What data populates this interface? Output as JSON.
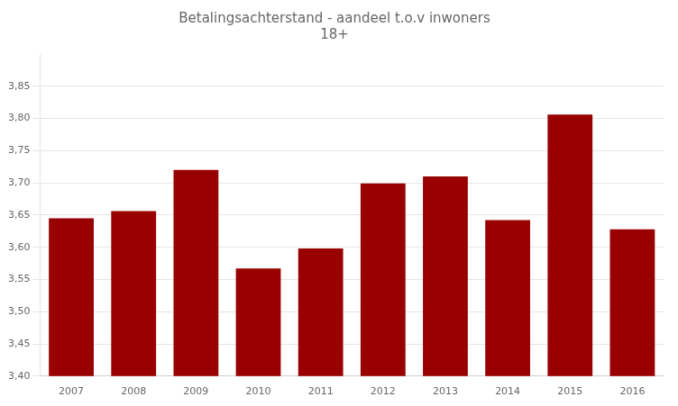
{
  "chart_data": {
    "type": "bar",
    "title": [
      "Betalingsachterstand - aandeel t.o.v inwoners",
      "18+"
    ],
    "categories": [
      2007,
      2008,
      2009,
      2010,
      2011,
      2012,
      2013,
      2014,
      2015,
      2016
    ],
    "values": [
      3.645,
      3.656,
      3.72,
      3.567,
      3.598,
      3.699,
      3.71,
      3.642,
      3.806,
      3.628
    ],
    "color": "#990000",
    "ylim": [
      3.4,
      3.9
    ],
    "yticks": [
      {
        "value": 3.4,
        "label": "3,40"
      },
      {
        "value": 3.45,
        "label": "3,45"
      },
      {
        "value": 3.5,
        "label": "3,50"
      },
      {
        "value": 3.55,
        "label": "3,55"
      },
      {
        "value": 3.6,
        "label": "3,60"
      },
      {
        "value": 3.65,
        "label": "3,65"
      },
      {
        "value": 3.7,
        "label": "3,70"
      },
      {
        "value": 3.75,
        "label": "3,75"
      },
      {
        "value": 3.8,
        "label": "3,80"
      },
      {
        "value": 3.85,
        "label": "3,85"
      }
    ],
    "grid": true
  }
}
